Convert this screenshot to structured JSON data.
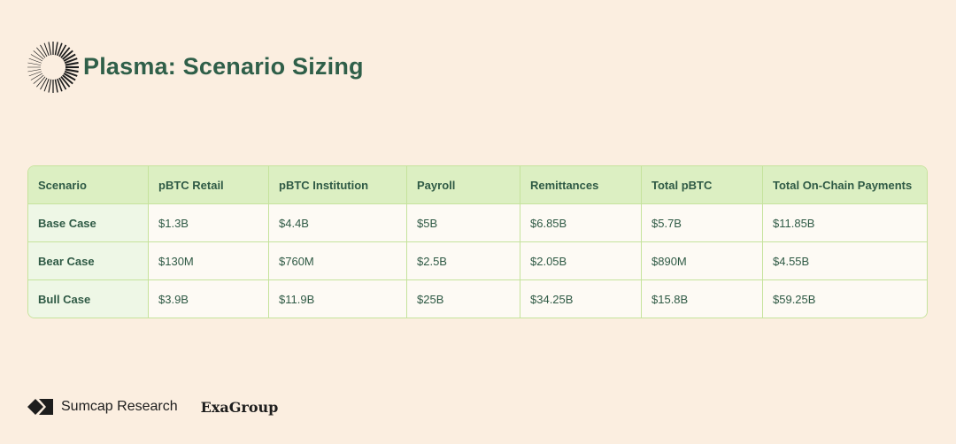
{
  "header": {
    "title": "Plasma: Scenario Sizing",
    "logo_icon": "radial-burst-logo"
  },
  "table": {
    "columns": [
      "Scenario",
      "pBTC Retail",
      "pBTC Institution",
      "Payroll",
      "Remittances",
      "Total pBTC",
      "Total On-Chain Payments"
    ],
    "rows": [
      [
        "Base Case",
        "$1.3B",
        "$4.4B",
        "$5B",
        "$6.85B",
        "$5.7B",
        "$11.85B"
      ],
      [
        "Bear Case",
        "$130M",
        "$760M",
        "$2.5B",
        "$2.05B",
        "$890M",
        "$4.55B"
      ],
      [
        "Bull Case",
        "$3.9B",
        "$11.9B",
        "$25B",
        "$34.25B",
        "$15.8B",
        "$59.25B"
      ]
    ]
  },
  "footer": {
    "sumcap": "Sumcap Research",
    "exagroup": "ExaGroup"
  },
  "colors": {
    "background": "#fbeee0",
    "title": "#2f5f49",
    "header_bg": "#dcefc2",
    "border": "#c5e39c"
  }
}
